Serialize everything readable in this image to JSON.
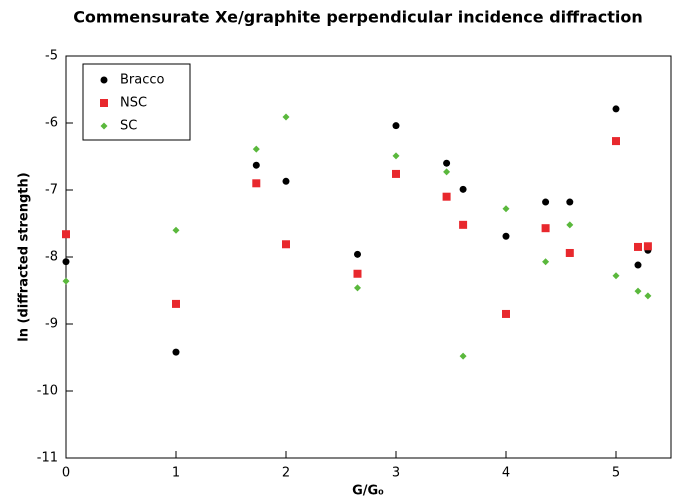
{
  "chart_data": {
    "type": "scatter",
    "title": "Commensurate Xe/graphite perpendicular incidence diffraction",
    "x_label": "G/G₀",
    "y_label": "ln (diffracted strength)",
    "xlim": [
      0,
      5.5
    ],
    "xticks": [
      0,
      1,
      2,
      3,
      4,
      5
    ],
    "ylim": [
      -11,
      -5
    ],
    "yticks": [
      -11,
      -10,
      -9,
      -8,
      -7,
      -6,
      -5
    ],
    "legend": "upper left",
    "x": [
      0,
      1,
      1.73,
      2,
      2.65,
      3,
      3.46,
      3.61,
      4,
      4.36,
      4.58,
      5,
      5.2,
      5.29
    ],
    "series": [
      {
        "name": "Bracco",
        "color": "#000000",
        "marker": "circle",
        "values": [
          -8.07,
          -9.42,
          -6.63,
          -6.87,
          -7.96,
          -6.04,
          -6.6,
          -6.99,
          -7.69,
          -7.18,
          -7.18,
          -5.79,
          -8.12,
          -7.9
        ]
      },
      {
        "name": "NSC",
        "color": "#e8282d",
        "marker": "square",
        "values": [
          -7.66,
          -8.7,
          -6.9,
          -7.81,
          -8.25,
          -6.76,
          -7.1,
          -7.52,
          -8.85,
          -7.57,
          -7.94,
          -6.27,
          -7.85,
          -7.84
        ]
      },
      {
        "name": "SC",
        "color": "#5ab83c",
        "marker": "diamond",
        "values": [
          -8.36,
          -7.6,
          -6.39,
          -5.91,
          -8.46,
          -6.49,
          -6.73,
          -9.48,
          -7.28,
          -8.07,
          -7.52,
          -8.28,
          -8.51,
          -8.58
        ]
      }
    ]
  }
}
